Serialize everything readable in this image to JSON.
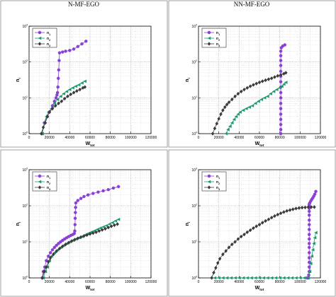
{
  "columns": [
    "N-MF-EGO",
    "NN-MF-EGO"
  ],
  "colors": {
    "n1": "#8a3fd6",
    "n2": "#1a9a6a",
    "n3": "#3a3a3a"
  },
  "chart_data": [
    {
      "type": "line",
      "xlabel": "W_tot",
      "ylabel": "n_i",
      "xlim": [
        0,
        120000
      ],
      "ylim": [
        1,
        1000
      ],
      "y_scale": "log",
      "x_ticks": [
        "0",
        "20000",
        "40000",
        "60000",
        "80000",
        "100000",
        "120000"
      ],
      "y_ticks": [
        "10^0",
        "10^1",
        "10^2",
        "10^3"
      ],
      "grid": true,
      "legend": "top-left",
      "series": [
        {
          "name": "n_1",
          "marker": "circle",
          "x": [
            13000,
            15000,
            18000,
            20000,
            23000,
            25000,
            26500,
            27500,
            28000,
            28400,
            28800,
            29200,
            29600,
            30000,
            33000,
            36000,
            40000,
            44000,
            48000,
            52000,
            56000
          ],
          "y": [
            1,
            2,
            3,
            4,
            6,
            8,
            10,
            12,
            14,
            20,
            35,
            60,
            110,
            180,
            190,
            200,
            210,
            230,
            270,
            320,
            380
          ]
        },
        {
          "name": "n_2",
          "marker": "triangle",
          "x": [
            13000,
            15000,
            17000,
            19000,
            22000,
            25000,
            28000,
            31000,
            34000,
            37000,
            40000,
            43000,
            46000,
            49000,
            52000,
            55000
          ],
          "y": [
            1,
            2,
            3,
            4,
            5,
            7,
            9,
            11,
            13,
            15,
            17,
            19,
            21,
            23,
            26,
            29
          ]
        },
        {
          "name": "n_3",
          "marker": "diamond",
          "x": [
            12000,
            14000,
            16000,
            18000,
            20000,
            23000,
            26000,
            29000,
            32000,
            35000,
            38000,
            41000,
            44000,
            47000,
            50000,
            53000,
            55000
          ],
          "y": [
            1,
            1.5,
            2,
            3,
            4,
            5,
            6,
            7,
            8,
            9.5,
            11,
            12.5,
            14,
            15.5,
            17,
            19,
            20
          ]
        }
      ]
    },
    {
      "type": "line",
      "xlabel": "W_tot",
      "ylabel": "n_i",
      "xlim": [
        0,
        120000
      ],
      "ylim": [
        1,
        1000
      ],
      "y_scale": "log",
      "x_ticks": [
        "0",
        "20000",
        "40000",
        "60000",
        "80000",
        "100000",
        "120000"
      ],
      "y_ticks": [
        "10^0",
        "10^1",
        "10^2",
        "10^3"
      ],
      "grid": true,
      "legend": "top-left",
      "series": [
        {
          "name": "n_1",
          "marker": "circle",
          "x": [
            81000,
            81000,
            81000,
            81000,
            81000,
            81000,
            81000,
            81000,
            81000,
            81000,
            81000,
            81000,
            81000,
            81000,
            81000,
            81000,
            81000,
            81500,
            83000,
            85000
          ],
          "y": [
            1,
            1.3,
            1.8,
            2.5,
            3.5,
            5,
            7,
            10,
            14,
            20,
            28,
            40,
            55,
            80,
            110,
            150,
            200,
            250,
            280,
            300
          ]
        },
        {
          "name": "n_2",
          "marker": "triangle",
          "x": [
            27000,
            29000,
            31000,
            33000,
            35000,
            37000,
            39000,
            41000,
            44000,
            47000,
            50000,
            53000,
            56000,
            59000,
            62000,
            65000,
            68000,
            71000,
            74000,
            77000,
            80000,
            82000,
            84000,
            86000
          ],
          "y": [
            1,
            1.3,
            1.6,
            2,
            2.5,
            3,
            3.5,
            4,
            4.5,
            5,
            5.5,
            6,
            7,
            8,
            9,
            10,
            11,
            13,
            15,
            17,
            19,
            21,
            24,
            27
          ]
        },
        {
          "name": "n_3",
          "marker": "diamond",
          "x": [
            14000,
            16000,
            18000,
            20000,
            22000,
            24000,
            26000,
            28000,
            30000,
            33000,
            36000,
            39000,
            42000,
            45000,
            48000,
            51000,
            54000,
            57000,
            60000,
            63000,
            66000,
            69000,
            72000,
            75000,
            78000,
            81000,
            84000,
            86000
          ],
          "y": [
            1,
            1.4,
            1.9,
            2.6,
            3.5,
            4.5,
            5.5,
            6.5,
            7.5,
            9,
            11,
            13,
            15,
            17,
            19,
            21,
            23,
            25,
            27,
            29,
            31,
            33,
            35,
            38,
            41,
            44,
            47,
            50
          ]
        }
      ]
    },
    {
      "type": "line",
      "xlabel": "W_tot",
      "ylabel": "n_i",
      "xlim": [
        0,
        120000
      ],
      "ylim": [
        1,
        1000
      ],
      "y_scale": "log",
      "x_ticks": [
        "0",
        "20000",
        "40000",
        "60000",
        "80000",
        "100000",
        "120000"
      ],
      "y_ticks": [
        "10^0",
        "10^1",
        "10^2",
        "10^3"
      ],
      "grid": true,
      "legend": "top-left",
      "series": [
        {
          "name": "n_1",
          "marker": "circle",
          "x": [
            13000,
            14000,
            15500,
            17000,
            19000,
            21000,
            23000,
            25000,
            27000,
            29000,
            31000,
            33000,
            35000,
            37000,
            39000,
            41000,
            43000,
            44500,
            45000,
            45200,
            45400,
            45600,
            45800,
            46000,
            48000,
            51000,
            54000,
            58000,
            63000,
            68000,
            73000,
            78000,
            83000,
            88000
          ],
          "y": [
            1,
            1.5,
            2,
            3,
            4,
            5,
            6,
            7,
            8,
            9,
            10,
            11,
            12,
            13,
            14,
            15,
            16,
            17,
            20,
            30,
            45,
            65,
            90,
            120,
            140,
            160,
            180,
            200,
            220,
            240,
            260,
            280,
            310,
            340
          ]
        },
        {
          "name": "n_2",
          "marker": "triangle",
          "x": [
            14000,
            16000,
            18000,
            20000,
            22000,
            25000,
            28000,
            31000,
            34000,
            37000,
            40000,
            43000,
            46000,
            49000,
            52000,
            55000,
            58000,
            61000,
            64000,
            67000,
            70000,
            73000,
            76000,
            79000,
            82000,
            85000,
            88000
          ],
          "y": [
            1,
            1.5,
            2,
            3,
            4,
            5,
            6,
            7,
            8,
            9,
            10,
            11,
            12,
            13,
            14,
            15.5,
            17,
            18.5,
            20,
            22,
            24,
            26,
            28,
            31,
            34,
            38,
            42
          ]
        },
        {
          "name": "n_3",
          "marker": "diamond",
          "x": [
            13000,
            15000,
            17000,
            19000,
            21000,
            24000,
            27000,
            30000,
            33000,
            36000,
            39000,
            42000,
            45000,
            48000,
            51000,
            54000,
            57000,
            60000,
            63000,
            66000,
            69000,
            72000,
            75000,
            78000,
            81000,
            84000,
            87000
          ],
          "y": [
            1,
            1.5,
            2,
            2.8,
            3.6,
            4.5,
            5.5,
            6.5,
            7.5,
            8.5,
            9.5,
            10.5,
            11.5,
            12.5,
            13.5,
            14.5,
            15.5,
            16.5,
            17.5,
            18.5,
            20,
            21.5,
            23,
            25,
            27,
            29,
            31
          ]
        }
      ]
    },
    {
      "type": "line",
      "xlabel": "W_tot",
      "ylabel": "n_i",
      "xlim": [
        0,
        120000
      ],
      "ylim": [
        1,
        1000
      ],
      "y_scale": "log",
      "x_ticks": [
        "0",
        "20000",
        "40000",
        "60000",
        "80000",
        "100000",
        "120000"
      ],
      "y_ticks": [
        "10^0",
        "10^1",
        "10^2",
        "10^3"
      ],
      "grid": true,
      "legend": "top-left",
      "series": [
        {
          "name": "n_1",
          "marker": "circle",
          "x": [
            107000,
            108000,
            108500,
            109000,
            109000,
            109000,
            109000,
            109000,
            109000,
            109000,
            109000,
            109000,
            109000,
            109000,
            109000,
            109000,
            109000,
            109000,
            109000,
            109000,
            109500,
            110500,
            111500,
            112500,
            113500,
            114500,
            115500
          ],
          "y": [
            1,
            1,
            1.2,
            1.5,
            2,
            2.7,
            3.6,
            5,
            7,
            9,
            12,
            16,
            22,
            30,
            40,
            55,
            70,
            85,
            100,
            110,
            120,
            135,
            150,
            165,
            185,
            210,
            250
          ]
        },
        {
          "name": "n_2",
          "marker": "triangle",
          "x": [
            16000,
            20000,
            24000,
            28000,
            32000,
            36000,
            40000,
            44000,
            48000,
            52000,
            56000,
            60000,
            64000,
            68000,
            72000,
            76000,
            80000,
            84000,
            88000,
            92000,
            96000,
            100000,
            104000,
            108000,
            109500,
            110500,
            111500,
            112500,
            113500,
            114500,
            115500
          ],
          "y": [
            1,
            1,
            1,
            1,
            1,
            1,
            1,
            1,
            1,
            1,
            1,
            1,
            1,
            1,
            1,
            1,
            1,
            1,
            1,
            1,
            1,
            1,
            1,
            1,
            1.5,
            2.5,
            4,
            6,
            9,
            13,
            18
          ]
        },
        {
          "name": "n_3",
          "marker": "diamond",
          "x": [
            13000,
            15000,
            17000,
            19000,
            21000,
            24000,
            27000,
            30000,
            33000,
            36000,
            39000,
            42000,
            45000,
            48000,
            51000,
            54000,
            57000,
            60000,
            63000,
            66000,
            69000,
            72000,
            75000,
            78000,
            81000,
            84000,
            87000,
            90000,
            93000,
            96000,
            99000,
            102000,
            105000,
            108000,
            111000,
            114000
          ],
          "y": [
            1,
            1.4,
            1.9,
            2.6,
            3.4,
            4.5,
            5.6,
            7,
            8.5,
            10,
            12,
            14,
            16,
            18.5,
            21,
            24,
            27,
            30,
            34,
            38,
            42,
            47,
            52,
            57,
            62,
            67,
            72,
            76,
            80,
            84,
            87,
            89,
            90,
            92,
            92,
            92
          ]
        }
      ]
    }
  ]
}
